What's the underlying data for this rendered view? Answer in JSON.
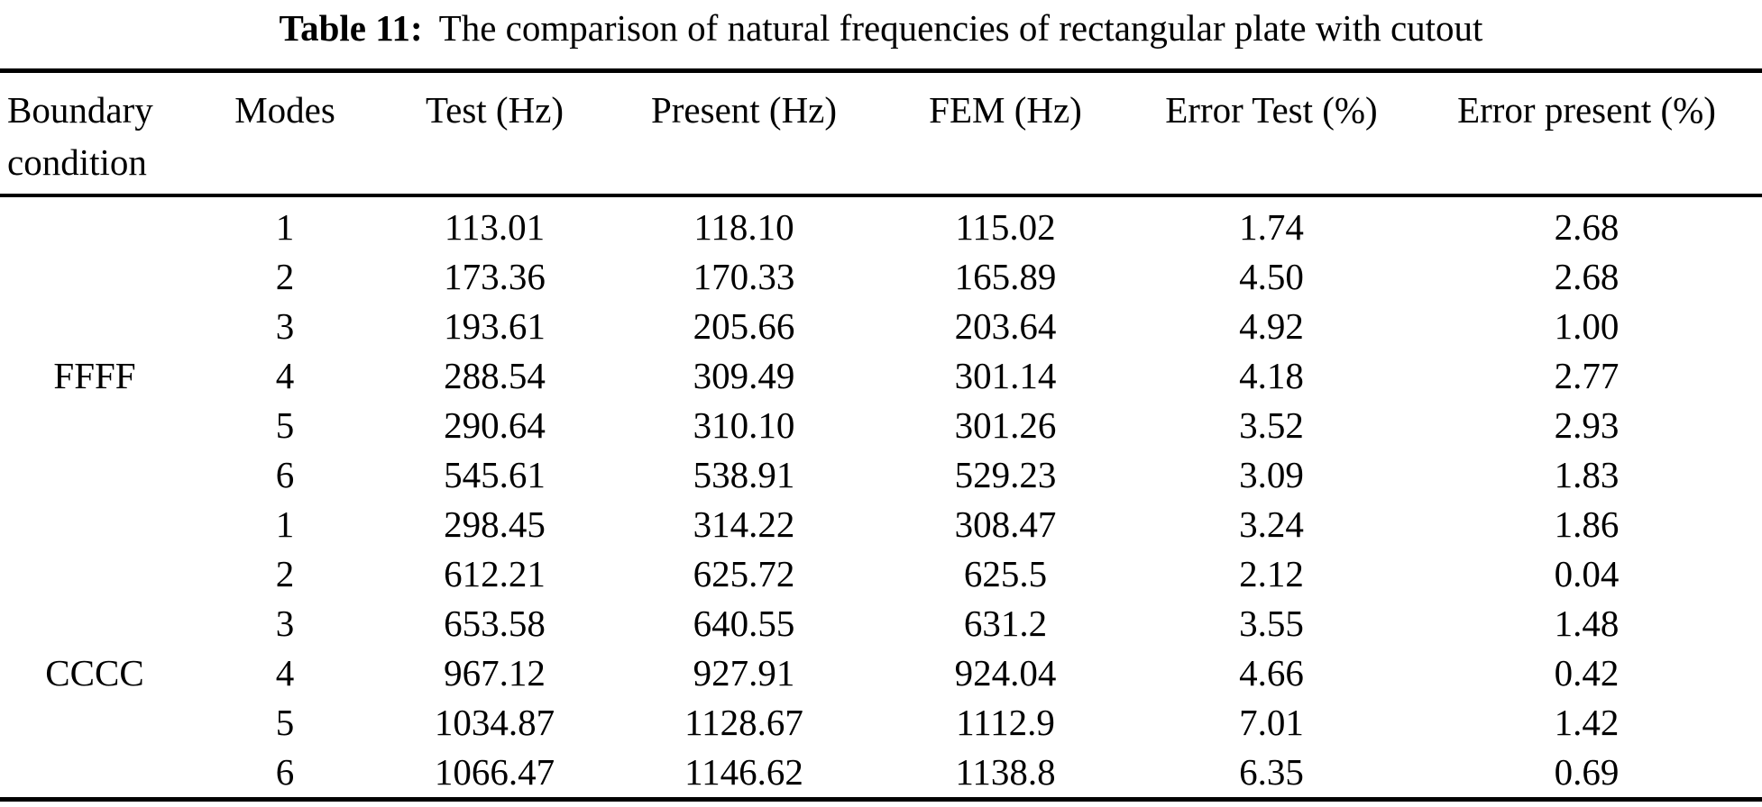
{
  "title": {
    "label": "Table 11:",
    "caption": "The comparison of natural frequencies of rectangular plate with cutout"
  },
  "colors": {
    "background": "#ffffff",
    "text": "#000000",
    "rule": "#000000"
  },
  "table": {
    "headers": {
      "boundary_line1": "Boundary",
      "boundary_line2": "condition",
      "modes": "Modes",
      "test": "Test (Hz)",
      "present": "Present (Hz)",
      "fem": "FEM (Hz)",
      "error_test": "Error Test (%)",
      "error_present": "Error present (%)"
    },
    "groups": [
      {
        "boundary_condition": "FFFF",
        "label_at_row": 4,
        "rows": [
          {
            "mode": "1",
            "test": "113.01",
            "present": "118.10",
            "fem": "115.02",
            "error_test": "1.74",
            "error_present": "2.68"
          },
          {
            "mode": "2",
            "test": "173.36",
            "present": "170.33",
            "fem": "165.89",
            "error_test": "4.50",
            "error_present": "2.68"
          },
          {
            "mode": "3",
            "test": "193.61",
            "present": "205.66",
            "fem": "203.64",
            "error_test": "4.92",
            "error_present": "1.00"
          },
          {
            "mode": "4",
            "test": "288.54",
            "present": "309.49",
            "fem": "301.14",
            "error_test": "4.18",
            "error_present": "2.77"
          },
          {
            "mode": "5",
            "test": "290.64",
            "present": "310.10",
            "fem": "301.26",
            "error_test": "3.52",
            "error_present": "2.93"
          },
          {
            "mode": "6",
            "test": "545.61",
            "present": "538.91",
            "fem": "529.23",
            "error_test": "3.09",
            "error_present": "1.83"
          }
        ]
      },
      {
        "boundary_condition": "CCCC",
        "label_at_row": 4,
        "rows": [
          {
            "mode": "1",
            "test": "298.45",
            "present": "314.22",
            "fem": "308.47",
            "error_test": "3.24",
            "error_present": "1.86"
          },
          {
            "mode": "2",
            "test": "612.21",
            "present": "625.72",
            "fem": "625.5",
            "error_test": "2.12",
            "error_present": "0.04"
          },
          {
            "mode": "3",
            "test": "653.58",
            "present": "640.55",
            "fem": "631.2",
            "error_test": "3.55",
            "error_present": "1.48"
          },
          {
            "mode": "4",
            "test": "967.12",
            "present": "927.91",
            "fem": "924.04",
            "error_test": "4.66",
            "error_present": "0.42"
          },
          {
            "mode": "5",
            "test": "1034.87",
            "present": "1128.67",
            "fem": "1112.9",
            "error_test": "7.01",
            "error_present": "1.42"
          },
          {
            "mode": "6",
            "test": "1066.47",
            "present": "1146.62",
            "fem": "1138.8",
            "error_test": "6.35",
            "error_present": "0.69"
          }
        ]
      }
    ]
  }
}
